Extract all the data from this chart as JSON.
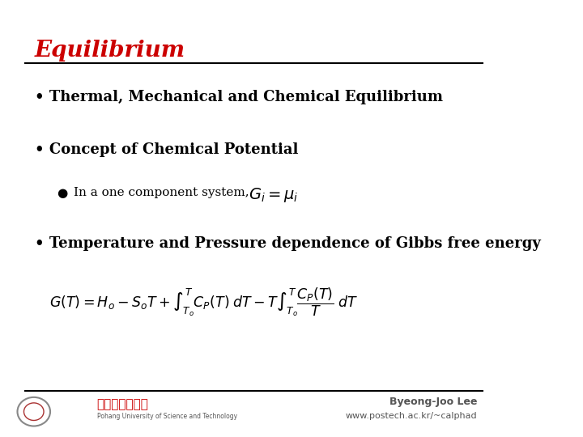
{
  "title": "Equilibrium",
  "title_color": "#cc0000",
  "background_color": "#ffffff",
  "bullet1": "Thermal, Mechanical and Chemical Equilibrium",
  "bullet2": "Concept of Chemical Potential",
  "sub_bullet": "In a one component system,",
  "sub_formula": "$G_i = \\mu_i$",
  "bullet3": "Temperature and Pressure dependence of Gibbs free energy",
  "main_formula": "$G(T) = H_o - S_o T + \\int_{T_o}^{T} C_P(T)\\; dT - T\\int_{T_o}^{T} \\dfrac{C_P(T)}{T}\\; dT$",
  "footer_left": "포항공과대학교",
  "footer_right1": "Byeong-Joo Lee",
  "footer_right2": "www.postech.ac.kr/~calphad",
  "text_color": "#000000",
  "footer_color": "#555555"
}
